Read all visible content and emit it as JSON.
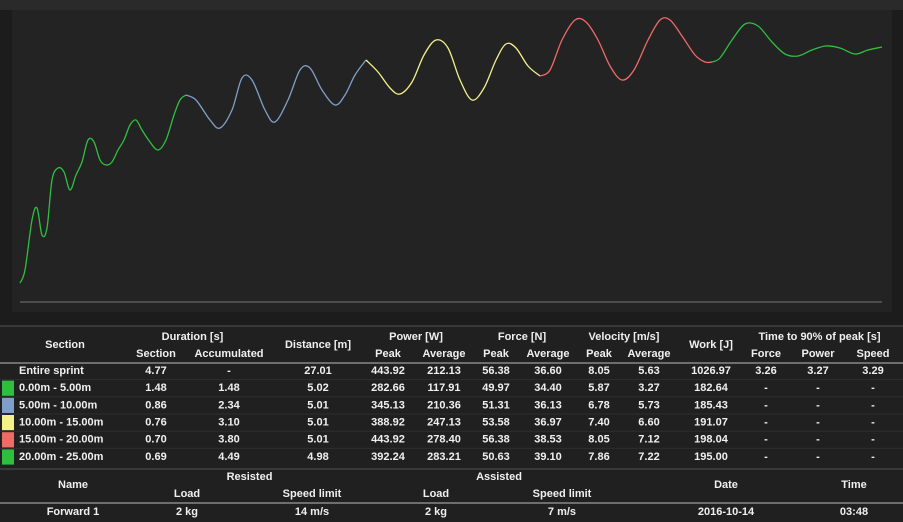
{
  "sprint_table": {
    "head": {
      "first": "Section",
      "groups": [
        {
          "label": "Duration [s]",
          "sub": [
            "Section",
            "Accumulated"
          ]
        },
        {
          "label": "Distance [m]"
        },
        {
          "label": "Power [W]",
          "sub": [
            "Peak",
            "Average"
          ]
        },
        {
          "label": "Force [N]",
          "sub": [
            "Peak",
            "Average"
          ]
        },
        {
          "label": "Velocity [m/s]",
          "sub": [
            "Peak",
            "Average"
          ]
        },
        {
          "label": "Work [J]"
        },
        {
          "label": "Time to 90% of peak [s]",
          "sub": [
            "Force",
            "Power",
            "Speed"
          ]
        }
      ]
    },
    "rows": [
      {
        "cells": [
          "Entire sprint",
          "4.77",
          "-",
          "27.01",
          "443.92",
          "212.13",
          "56.38",
          "36.60",
          "8.05",
          "5.63",
          "1026.97",
          "3.26",
          "3.27",
          "3.29"
        ]
      },
      {
        "color": "#2fbf3f",
        "cells": [
          "0.00m - 5.00m",
          "1.48",
          "1.48",
          "5.02",
          "282.66",
          "117.91",
          "49.97",
          "34.40",
          "5.87",
          "3.27",
          "182.64",
          "-",
          "-",
          "-"
        ]
      },
      {
        "color": "#7f9fc8",
        "cells": [
          "5.00m - 10.00m",
          "0.86",
          "2.34",
          "5.01",
          "345.13",
          "210.36",
          "51.31",
          "36.13",
          "6.78",
          "5.73",
          "185.43",
          "-",
          "-",
          "-"
        ]
      },
      {
        "color": "#f5f08a",
        "cells": [
          "10.00m - 15.00m",
          "0.76",
          "3.10",
          "5.01",
          "388.92",
          "247.13",
          "53.58",
          "36.97",
          "7.40",
          "6.60",
          "191.07",
          "-",
          "-",
          "-"
        ]
      },
      {
        "color": "#f06a66",
        "cells": [
          "15.00m - 20.00m",
          "0.70",
          "3.80",
          "5.01",
          "443.92",
          "278.40",
          "56.38",
          "38.53",
          "8.05",
          "7.12",
          "198.04",
          "-",
          "-",
          "-"
        ]
      },
      {
        "color": "#2fbf3f",
        "cells": [
          "20.00m - 25.00m",
          "0.69",
          "4.49",
          "4.98",
          "392.24",
          "283.21",
          "50.63",
          "39.10",
          "7.86",
          "7.22",
          "195.00",
          "-",
          "-",
          "-"
        ]
      }
    ]
  },
  "load_table": {
    "head": {
      "first": "Name",
      "groups": [
        {
          "label": "Resisted",
          "sub": [
            "Load",
            "Speed limit"
          ]
        },
        {
          "label": "Assisted",
          "sub": [
            "Load",
            "Speed limit"
          ]
        },
        {
          "label": "Date"
        },
        {
          "label": "Time"
        }
      ]
    },
    "rows": [
      {
        "cells": [
          "Forward 1",
          "2 kg",
          "14 m/s",
          "2 kg",
          "7 m/s",
          "2016-10-14",
          "03:48"
        ]
      }
    ]
  }
}
